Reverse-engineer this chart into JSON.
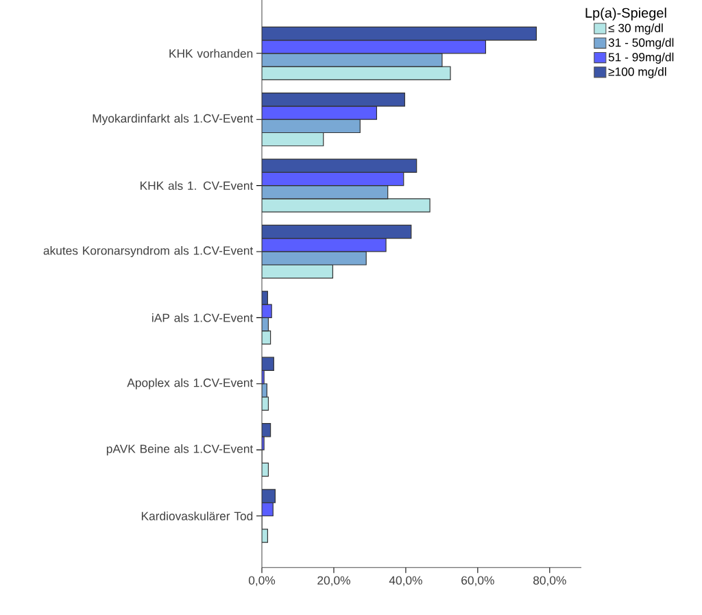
{
  "chart_data": {
    "type": "bar",
    "orientation": "horizontal",
    "legend_title": "Lp(a)-Spiegel",
    "legend": "top right",
    "categories": [
      "KHK vorhanden",
      "Myokardinfarkt als 1.CV-Event",
      "KHK als 1. CV-Event",
      "akutes Koronarsyndrom als 1.CV-Event",
      "iAP als 1.CV-Event",
      "Apoplex als 1.CV-Event",
      "pAVK Beine als 1.CV-Event",
      "Kardiovaskulärer Tod"
    ],
    "series": [
      {
        "name": "≤ 30 mg/dl",
        "color": "#b3e6e6",
        "values": [
          52.4,
          17.1,
          46.7,
          19.7,
          2.4,
          1.8,
          1.8,
          1.6
        ]
      },
      {
        "name": "31 - 50mg/dl",
        "color": "#79a8d4",
        "values": [
          50.1,
          27.3,
          35.0,
          29.0,
          1.8,
          1.4,
          0,
          0
        ]
      },
      {
        "name": "51 - 99mg/dl",
        "color": "#5a5eff",
        "values": [
          62.2,
          31.9,
          39.4,
          34.5,
          2.7,
          0.6,
          0.6,
          3.1
        ]
      },
      {
        "name": "≥100 mg/dl",
        "color": "#3c55a6",
        "values": [
          76.3,
          39.7,
          43.0,
          41.5,
          1.6,
          3.3,
          2.4,
          3.7
        ]
      }
    ],
    "xlim": [
      0,
      88.8
    ],
    "xticks": [
      {
        "value": 0,
        "label": "0,0%"
      },
      {
        "value": 20,
        "label": "20,0%"
      },
      {
        "value": 40,
        "label": "40,0%"
      },
      {
        "value": 60,
        "label": "60,0%"
      },
      {
        "value": 80,
        "label": "80,0%"
      }
    ],
    "grid": false
  }
}
